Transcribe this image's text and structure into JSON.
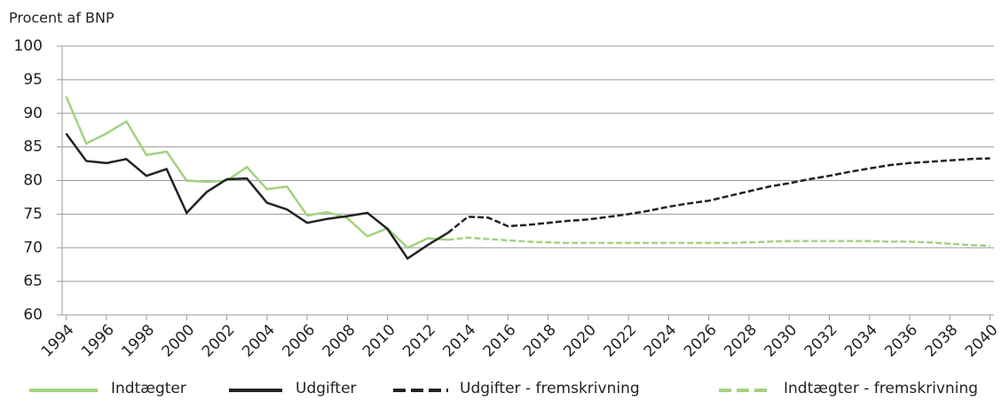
{
  "chart_data": {
    "type": "line",
    "y_label": "Procent af BNP",
    "x": [
      1994,
      1995,
      1996,
      1997,
      1998,
      1999,
      2000,
      2001,
      2002,
      2003,
      2004,
      2005,
      2006,
      2007,
      2008,
      2009,
      2010,
      2011,
      2012,
      2013,
      2014,
      2015,
      2016,
      2017,
      2018,
      2019,
      2020,
      2021,
      2022,
      2023,
      2024,
      2025,
      2026,
      2027,
      2028,
      2029,
      2030,
      2031,
      2032,
      2033,
      2034,
      2035,
      2036,
      2037,
      2038,
      2039,
      2040
    ],
    "series": [
      {
        "name": "Indtægter",
        "color": "#a3d27f",
        "dashed": false,
        "values": [
          92.5,
          85.5,
          87,
          88.8,
          83.8,
          84.3,
          80,
          79.8,
          80,
          82,
          78.7,
          79.1,
          74.8,
          75.3,
          74.4,
          71.7,
          72.9,
          70,
          71.4,
          71.2,
          null,
          null,
          null,
          null,
          null,
          null,
          null,
          null,
          null,
          null,
          null,
          null,
          null,
          null,
          null,
          null,
          null,
          null,
          null,
          null,
          null,
          null,
          null,
          null,
          null,
          null,
          null
        ]
      },
      {
        "name": "Udgifter",
        "color": "#222222",
        "dashed": false,
        "values": [
          87,
          82.9,
          82.6,
          83.2,
          80.7,
          81.7,
          75.2,
          78.3,
          80.2,
          80.3,
          76.7,
          75.7,
          73.7,
          74.3,
          74.7,
          75.2,
          72.8,
          68.4,
          70.4,
          72.2,
          null,
          null,
          null,
          null,
          null,
          null,
          null,
          null,
          null,
          null,
          null,
          null,
          null,
          null,
          null,
          null,
          null,
          null,
          null,
          null,
          null,
          null,
          null,
          null,
          null,
          null,
          null
        ]
      },
      {
        "name": "Udgifter - fremskrivning",
        "color": "#222222",
        "dashed": true,
        "values": [
          null,
          null,
          null,
          null,
          null,
          null,
          null,
          null,
          null,
          null,
          null,
          null,
          null,
          null,
          null,
          null,
          null,
          null,
          null,
          72.2,
          74.6,
          74.5,
          73.2,
          73.4,
          73.7,
          74,
          74.2,
          74.6,
          75,
          75.5,
          76.1,
          76.6,
          77,
          77.7,
          78.4,
          79.1,
          79.6,
          80.2,
          80.7,
          81.3,
          81.8,
          82.3,
          82.6,
          82.8,
          83,
          83.2,
          83.3
        ]
      },
      {
        "name": "Indtægter - fremskrivning",
        "color": "#a3d27f",
        "dashed": true,
        "values": [
          null,
          null,
          null,
          null,
          null,
          null,
          null,
          null,
          null,
          null,
          null,
          null,
          null,
          null,
          null,
          null,
          null,
          null,
          null,
          71.2,
          71.5,
          71.3,
          71.1,
          70.9,
          70.8,
          70.7,
          70.7,
          70.7,
          70.7,
          70.7,
          70.7,
          70.7,
          70.7,
          70.7,
          70.8,
          70.9,
          71,
          71,
          71,
          71,
          71,
          70.9,
          70.9,
          70.8,
          70.6,
          70.4,
          70.3
        ]
      }
    ],
    "xlim": [
      1993.8,
      2040.2
    ],
    "xticks": [
      1994,
      1996,
      1998,
      2000,
      2002,
      2004,
      2006,
      2008,
      2010,
      2012,
      2014,
      2016,
      2018,
      2020,
      2022,
      2024,
      2026,
      2028,
      2030,
      2032,
      2034,
      2036,
      2038,
      2040
    ],
    "ylim": [
      60,
      100
    ],
    "yticks": [
      60,
      65,
      70,
      75,
      80,
      85,
      90,
      95,
      100
    ],
    "grid": true,
    "legend": "bottom"
  }
}
